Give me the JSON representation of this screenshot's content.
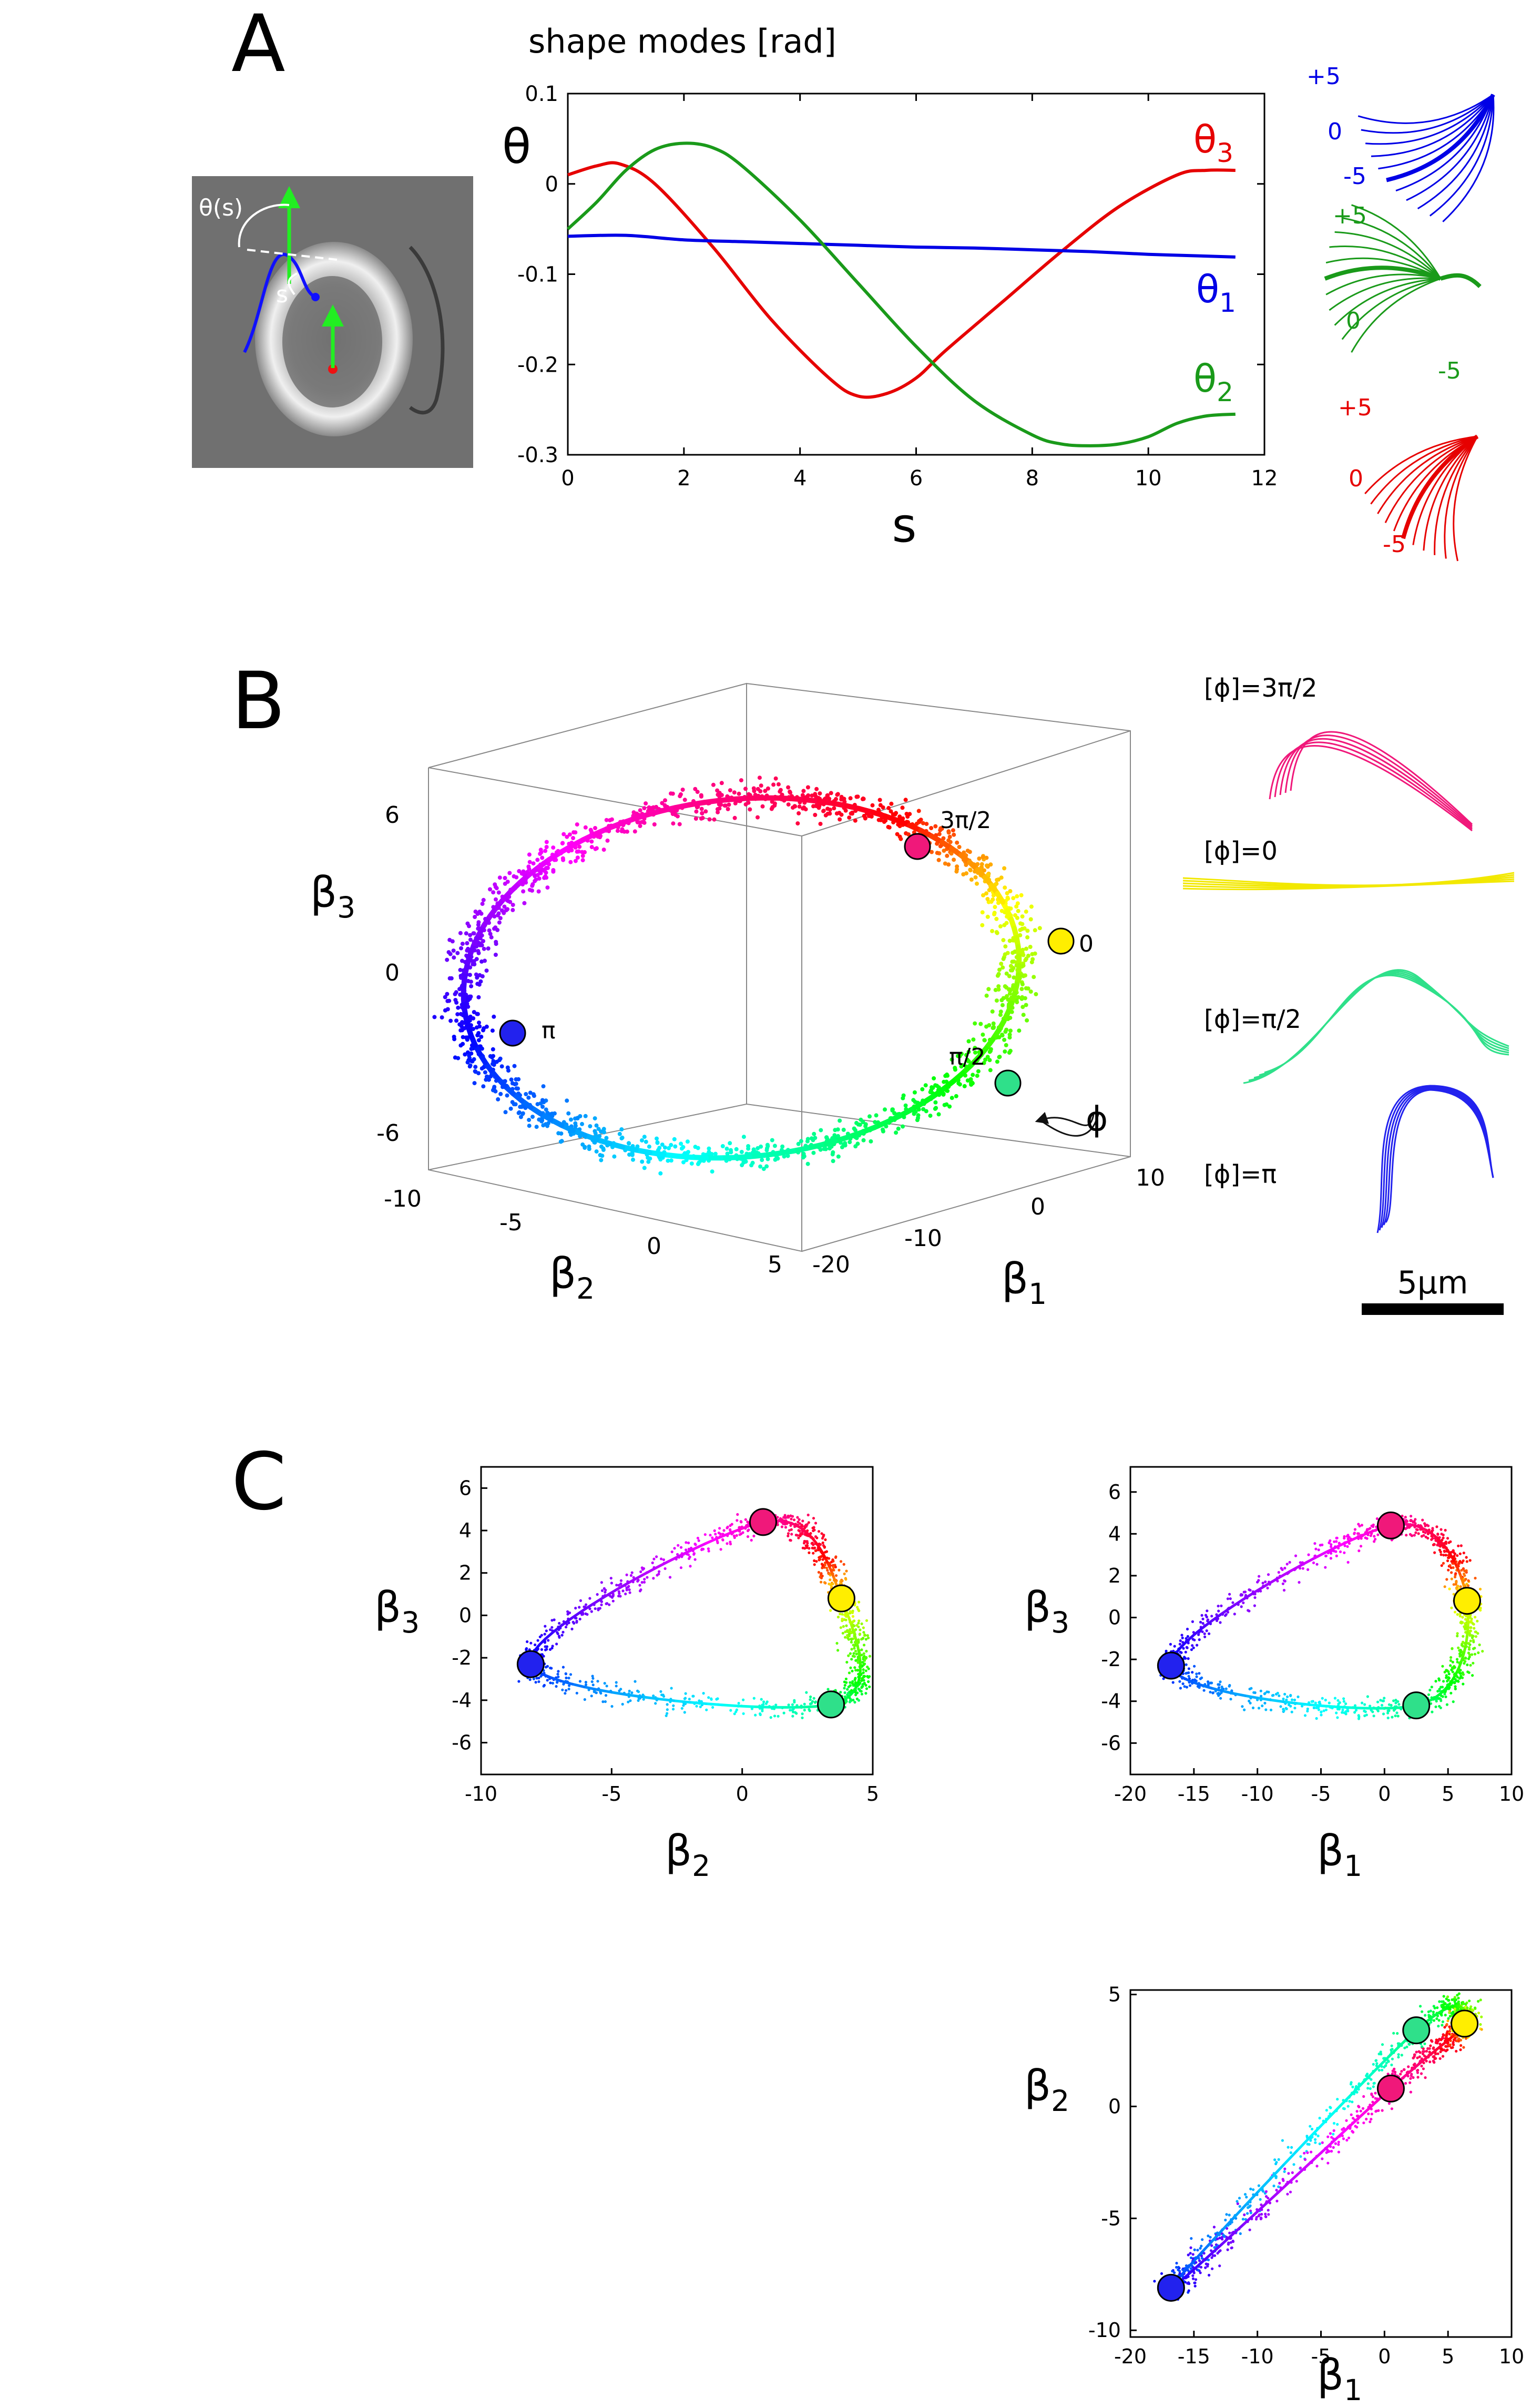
{
  "panels": {
    "A": {
      "letter": "A",
      "micrograph": {
        "theta_label": "θ(s)",
        "s_label": "s"
      },
      "chart_data": {
        "type": "line",
        "title": "shape modes [rad]",
        "xlabel": "s",
        "ylabel": "θ",
        "xlim": [
          0,
          12
        ],
        "ylim": [
          -0.3,
          0.1
        ],
        "xticks": [
          0,
          2,
          4,
          6,
          8,
          10,
          12
        ],
        "yticks": [
          0.1,
          0,
          -0.1,
          -0.2,
          -0.3
        ],
        "xtick_labels": [
          "0",
          "2",
          "4",
          "6",
          "8",
          "10",
          "12"
        ],
        "ytick_labels": [
          "0.1",
          "0",
          "-0.1",
          "-0.2",
          "-0.3"
        ],
        "grid": false,
        "series": [
          {
            "name": "θ3",
            "color": "#e60000",
            "x": [
              0,
              0.5,
              0.9,
              1.5,
              2.5,
              3.5,
              4.5,
              5.0,
              5.5,
              6.0,
              6.5,
              7.5,
              8.5,
              9.5,
              10.5,
              11.0,
              11.5
            ],
            "y": [
              0.01,
              0.02,
              0.022,
              0.0,
              -0.07,
              -0.15,
              -0.215,
              -0.235,
              -0.232,
              -0.215,
              -0.185,
              -0.13,
              -0.075,
              -0.025,
              0.01,
              0.015,
              0.015
            ]
          },
          {
            "name": "θ1",
            "color": "#0000e6",
            "x": [
              0,
              1,
              2,
              3,
              4,
              5,
              6,
              7,
              8,
              9,
              10,
              11,
              11.5
            ],
            "y": [
              -0.058,
              -0.057,
              -0.062,
              -0.064,
              -0.066,
              -0.068,
              -0.07,
              -0.071,
              -0.073,
              -0.075,
              -0.078,
              -0.08,
              -0.081
            ]
          },
          {
            "name": "θ2",
            "color": "#1a9a1a",
            "x": [
              0,
              0.5,
              1.0,
              1.5,
              2.0,
              2.5,
              3.0,
              4.0,
              5.0,
              6.0,
              7.0,
              8.0,
              8.5,
              9.0,
              9.5,
              10.0,
              10.5,
              11.0,
              11.5
            ],
            "y": [
              -0.05,
              -0.02,
              0.015,
              0.038,
              0.045,
              0.04,
              0.02,
              -0.04,
              -0.11,
              -0.18,
              -0.24,
              -0.278,
              -0.288,
              -0.29,
              -0.288,
              -0.28,
              -0.265,
              -0.257,
              -0.255
            ]
          }
        ]
      },
      "mode_shapes": [
        {
          "name": "θ1",
          "color": "#0000e6",
          "labels": [
            "+5",
            "0",
            "-5"
          ]
        },
        {
          "name": "θ2",
          "color": "#1a9a1a",
          "labels": [
            "+5",
            "0",
            "-5"
          ]
        },
        {
          "name": "θ3",
          "color": "#e60000",
          "labels": [
            "+5",
            "0",
            "-5"
          ]
        }
      ]
    },
    "B": {
      "letter": "B",
      "chart_data": {
        "type": "scatter",
        "projection": "3d",
        "xlabel": "β1",
        "ylabel": "β2",
        "zlabel": "β3",
        "xlim": [
          -20,
          10
        ],
        "ylim": [
          -10,
          5
        ],
        "zlim": [
          -8,
          8
        ],
        "xtick_labels": [
          "-20",
          "-10",
          "0",
          "10"
        ],
        "ytick_labels": [
          "-10",
          "-5",
          "0",
          "5"
        ],
        "ztick_labels": [
          "6",
          "0",
          "-6"
        ],
        "color_by": "phase φ (hue cycle)",
        "phase_markers": [
          {
            "label": "0",
            "color": "#ffee00"
          },
          {
            "label": "π/2",
            "color": "#2fe08a"
          },
          {
            "label": "π",
            "color": "#2222ee"
          },
          {
            "label": "3π/2",
            "color": "#f0187a"
          }
        ],
        "arrow_label": "ϕ"
      },
      "waveforms": [
        {
          "label": "[ϕ]=3π/2",
          "color": "#f0187a"
        },
        {
          "label": "[ϕ]=0",
          "color": "#f2e800"
        },
        {
          "label": "[ϕ]=π/2",
          "color": "#2fe08a"
        },
        {
          "label": "[ϕ]=π",
          "color": "#2222ee"
        }
      ],
      "scalebar": {
        "label": "5μm"
      }
    },
    "C": {
      "letter": "C",
      "chart_data": [
        {
          "type": "scatter",
          "xlabel": "β2",
          "ylabel": "β3",
          "xlim": [
            -10,
            5
          ],
          "ylim": [
            -7.5,
            7.0
          ],
          "xticks": [
            -10,
            -5,
            0,
            5
          ],
          "xtick_labels": [
            "-10",
            "-5",
            "0",
            "5"
          ],
          "yticks": [
            6,
            4,
            2,
            0,
            -2,
            -4,
            -6
          ],
          "ytick_labels": [
            "6",
            "4",
            "2",
            "0",
            "-2",
            "-4",
            "-6"
          ],
          "phase_markers": [
            {
              "phase": "0",
              "x": 3.8,
              "y": 0.8,
              "color": "#ffee00"
            },
            {
              "phase": "π/2",
              "x": 3.4,
              "y": -4.2,
              "color": "#2fe08a"
            },
            {
              "phase": "π",
              "x": -8.1,
              "y": -2.3,
              "color": "#2222ee"
            },
            {
              "phase": "3π/2",
              "x": 0.8,
              "y": 4.4,
              "color": "#f0187a"
            }
          ]
        },
        {
          "type": "scatter",
          "xlabel": "β1",
          "ylabel": "β3",
          "xlim": [
            -20,
            10
          ],
          "ylim": [
            -7.5,
            7.2
          ],
          "xticks": [
            -20,
            -15,
            -10,
            -5,
            0,
            5,
            10
          ],
          "xtick_labels": [
            "-20",
            "-15",
            "-10",
            "-5",
            "0",
            "5",
            "10"
          ],
          "yticks": [
            6,
            4,
            2,
            0,
            -2,
            -4,
            -6
          ],
          "ytick_labels": [
            "6",
            "4",
            "2",
            "0",
            "-2",
            "-4",
            "-6"
          ],
          "phase_markers": [
            {
              "phase": "0",
              "x": 6.5,
              "y": 0.8,
              "color": "#ffee00"
            },
            {
              "phase": "π/2",
              "x": 2.5,
              "y": -4.2,
              "color": "#2fe08a"
            },
            {
              "phase": "π",
              "x": -16.8,
              "y": -2.3,
              "color": "#2222ee"
            },
            {
              "phase": "3π/2",
              "x": 0.5,
              "y": 4.4,
              "color": "#f0187a"
            }
          ]
        },
        {
          "type": "scatter",
          "xlabel": "β1",
          "ylabel": "β2",
          "xlim": [
            -20,
            10
          ],
          "ylim": [
            -10.3,
            5.2
          ],
          "xticks": [
            -20,
            -15,
            -10,
            -5,
            0,
            5,
            10
          ],
          "xtick_labels": [
            "-20",
            "-15",
            "-10",
            "-5",
            "0",
            "5",
            "10"
          ],
          "yticks": [
            5,
            0,
            -5,
            -10
          ],
          "ytick_labels": [
            "5",
            "0",
            "-5",
            "-10"
          ],
          "phase_markers": [
            {
              "phase": "0",
              "x": 6.3,
              "y": 3.7,
              "color": "#ffee00"
            },
            {
              "phase": "π/2",
              "x": 2.5,
              "y": 3.4,
              "color": "#2fe08a"
            },
            {
              "phase": "π",
              "x": -16.8,
              "y": -8.1,
              "color": "#2222ee"
            },
            {
              "phase": "3π/2",
              "x": 0.5,
              "y": 0.8,
              "color": "#f0187a"
            }
          ]
        }
      ]
    }
  }
}
